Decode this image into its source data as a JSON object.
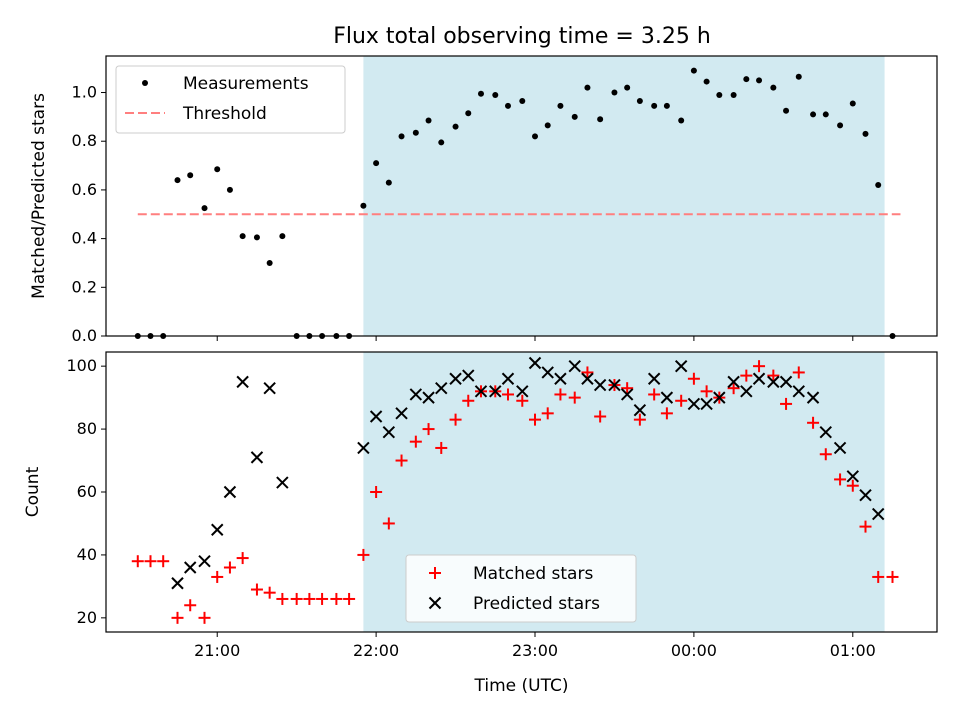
{
  "title": "Flux total observing time = 3.25 h",
  "chart_data": [
    {
      "type": "scatter",
      "ylabel": "Matched/Predicted stars",
      "ylim": [
        0,
        1.15
      ],
      "yticks": [
        "0.0",
        "0.2",
        "0.4",
        "0.6",
        "0.8",
        "1.0"
      ],
      "xlim_hours": [
        20.3,
        25.53
      ],
      "legend_position": "top-left",
      "shaded_interval_hours": [
        21.92,
        25.2
      ],
      "shade_color": "#add8e6",
      "threshold": {
        "name": "Threshold",
        "value": 0.5,
        "x_from_hours": 20.5,
        "x_to_hours": 25.3,
        "color": "#ff7f7f"
      },
      "series": [
        {
          "name": "Measurements",
          "color": "#000000",
          "x_hours": [
            20.5,
            20.58,
            20.66,
            20.75,
            20.83,
            20.92,
            21.0,
            21.08,
            21.16,
            21.25,
            21.33,
            21.41,
            21.5,
            21.58,
            21.66,
            21.75,
            21.83,
            21.92,
            22.0,
            22.08,
            22.16,
            22.25,
            22.33,
            22.41,
            22.5,
            22.58,
            22.66,
            22.75,
            22.83,
            22.92,
            23.0,
            23.08,
            23.16,
            23.25,
            23.33,
            23.41,
            23.5,
            23.58,
            23.66,
            23.75,
            23.83,
            23.92,
            24.0,
            24.08,
            24.16,
            24.25,
            24.33,
            24.41,
            24.5,
            24.58,
            24.66,
            24.75,
            24.83,
            24.92,
            25.0,
            25.08,
            25.16,
            25.25
          ],
          "values": [
            0.0,
            0.0,
            0.0,
            0.64,
            0.66,
            0.525,
            0.685,
            0.6,
            0.41,
            0.405,
            0.3,
            0.41,
            0.0,
            0.0,
            0.0,
            0.0,
            0.0,
            0.535,
            0.71,
            0.63,
            0.82,
            0.835,
            0.885,
            0.795,
            0.86,
            0.915,
            0.995,
            0.99,
            0.945,
            0.965,
            0.82,
            0.865,
            0.945,
            0.9,
            1.02,
            0.89,
            1.0,
            1.02,
            0.965,
            0.945,
            0.945,
            0.885,
            1.09,
            1.045,
            0.99,
            0.99,
            1.055,
            1.05,
            1.02,
            0.925,
            1.065,
            0.91,
            0.91,
            0.865,
            0.955,
            0.83,
            0.62,
            0.0
          ]
        }
      ]
    },
    {
      "type": "scatter",
      "ylabel": "Count",
      "xlabel": "Time (UTC)",
      "ylim": [
        15.5,
        104.5
      ],
      "yticks": [
        "20",
        "40",
        "60",
        "80",
        "100"
      ],
      "xlim_hours": [
        20.3,
        25.53
      ],
      "xticks": [
        {
          "hour": 21,
          "label": "21:00"
        },
        {
          "hour": 22,
          "label": "22:00"
        },
        {
          "hour": 23,
          "label": "23:00"
        },
        {
          "hour": 24,
          "label": "00:00"
        },
        {
          "hour": 25,
          "label": "01:00"
        }
      ],
      "legend_position": "lower-center",
      "shaded_interval_hours": [
        21.92,
        25.2
      ],
      "series": [
        {
          "name": "Matched stars",
          "marker": "plus",
          "color": "#ff0000",
          "x_hours": [
            20.5,
            20.58,
            20.66,
            20.75,
            20.83,
            20.92,
            21.0,
            21.08,
            21.16,
            21.25,
            21.33,
            21.41,
            21.5,
            21.58,
            21.66,
            21.75,
            21.83,
            21.92,
            22.0,
            22.08,
            22.16,
            22.25,
            22.33,
            22.41,
            22.5,
            22.58,
            22.66,
            22.75,
            22.83,
            22.92,
            23.0,
            23.08,
            23.16,
            23.25,
            23.33,
            23.41,
            23.5,
            23.58,
            23.66,
            23.75,
            23.83,
            23.92,
            24.0,
            24.08,
            24.16,
            24.25,
            24.33,
            24.41,
            24.5,
            24.58,
            24.66,
            24.75,
            24.83,
            24.92,
            25.0,
            25.08,
            25.16,
            25.25
          ],
          "values": [
            38,
            38,
            38,
            20,
            24,
            20,
            33,
            36,
            39,
            29,
            28,
            26,
            26,
            26,
            26,
            26,
            26,
            40,
            60,
            50,
            70,
            76,
            80,
            74,
            83,
            89,
            92,
            92,
            91,
            89,
            83,
            85,
            91,
            90,
            98,
            84,
            94,
            93,
            83,
            91,
            85,
            89,
            96,
            92,
            90,
            93,
            97,
            100,
            97,
            88,
            98,
            82,
            72,
            64,
            62,
            49,
            33,
            33
          ]
        },
        {
          "name": "Predicted stars",
          "marker": "x",
          "color": "#000000",
          "x_hours": [
            20.75,
            20.83,
            20.92,
            21.0,
            21.08,
            21.16,
            21.25,
            21.33,
            21.41,
            21.92,
            22.0,
            22.08,
            22.16,
            22.25,
            22.33,
            22.41,
            22.5,
            22.58,
            22.66,
            22.75,
            22.83,
            22.92,
            23.0,
            23.08,
            23.16,
            23.25,
            23.33,
            23.41,
            23.5,
            23.58,
            23.66,
            23.75,
            23.83,
            23.92,
            24.0,
            24.08,
            24.16,
            24.25,
            24.33,
            24.41,
            24.5,
            24.58,
            24.66,
            24.75,
            24.83,
            24.92,
            25.0,
            25.08,
            25.16
          ],
          "values": [
            31,
            36,
            38,
            48,
            60,
            95,
            71,
            93,
            63,
            74,
            84,
            79,
            85,
            91,
            90,
            93,
            96,
            97,
            92,
            92,
            96,
            92,
            101,
            98,
            96,
            100,
            96,
            94,
            94,
            91,
            86,
            96,
            90,
            100,
            88,
            88,
            90,
            95,
            92,
            96,
            95,
            95,
            92,
            90,
            79,
            74,
            65,
            59,
            53
          ]
        }
      ]
    }
  ]
}
